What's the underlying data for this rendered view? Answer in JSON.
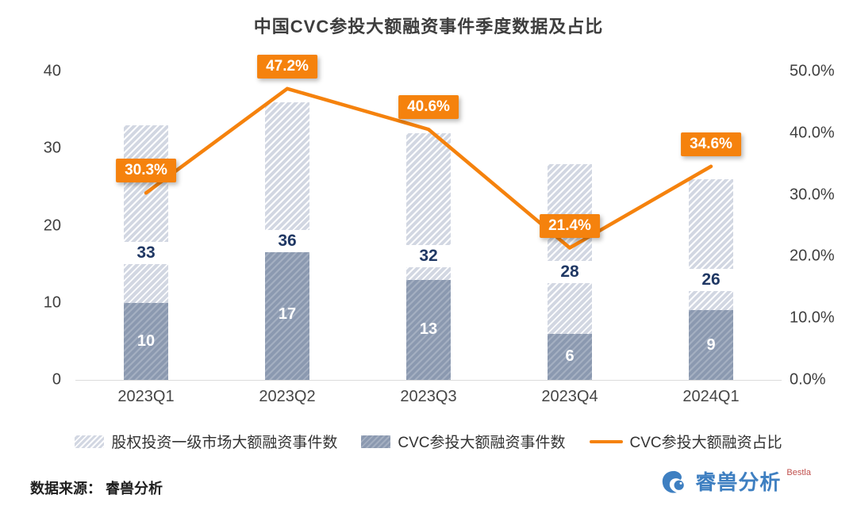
{
  "title": "中国CVC参投大额融资事件季度数据及占比",
  "source_note": "数据来源： 睿兽分析",
  "footer_logo": {
    "text": "睿兽分析",
    "sub": "Bestla"
  },
  "colors": {
    "orange": "#F5820D",
    "navy": "#203864",
    "bar_light": "#D2D7E2",
    "bar_dark": "#8B99B0",
    "logo_blue": "#3E7FC1"
  },
  "chart_data": {
    "type": "bar",
    "subtype": "overlapped bars with line overlay (dual axis)",
    "title": "中国CVC参投大额融资事件季度数据及占比",
    "categories": [
      "2023Q1",
      "2023Q2",
      "2023Q3",
      "2023Q4",
      "2024Q1"
    ],
    "series": [
      {
        "name": "股权投资一级市场大额融资事件数",
        "type": "bar",
        "axis": "left",
        "values": [
          33,
          36,
          32,
          28,
          26
        ]
      },
      {
        "name": "CVC参投大额融资事件数",
        "type": "bar",
        "axis": "left",
        "values": [
          10,
          17,
          13,
          6,
          9
        ]
      },
      {
        "name": "CVC参投大额融资占比",
        "type": "line",
        "axis": "right",
        "values": [
          30.3,
          47.2,
          40.6,
          21.4,
          34.6
        ],
        "labels": [
          "30.3%",
          "47.2%",
          "40.6%",
          "21.4%",
          "34.6%"
        ]
      }
    ],
    "left_axis": {
      "min": 0,
      "max": 40,
      "tick_values": [
        0,
        10,
        20,
        30,
        40
      ],
      "tick_labels": [
        "0",
        "10",
        "20",
        "30",
        "40"
      ]
    },
    "right_axis": {
      "min": 0,
      "max": 50,
      "tick_values": [
        0,
        10,
        20,
        30,
        40,
        50
      ],
      "tick_labels": [
        "0.0%",
        "10.0%",
        "20.0%",
        "30.0%",
        "40.0%",
        "50.0%"
      ]
    },
    "legend": [
      "股权投资一级市场大额融资事件数",
      "CVC参投大额融资事件数",
      "CVC参投大额融资占比"
    ],
    "grid": false,
    "legend_position": "bottom-center"
  }
}
